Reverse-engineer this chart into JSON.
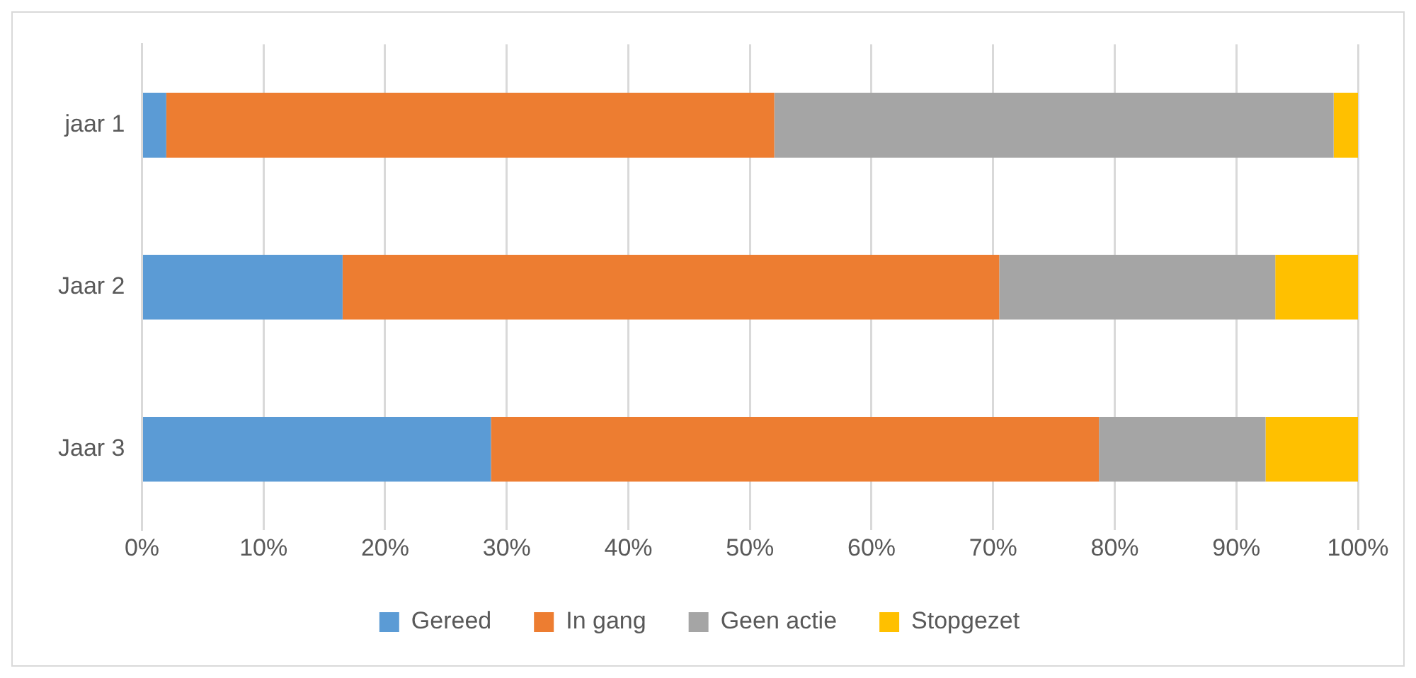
{
  "chart_data": {
    "type": "bar",
    "orientation": "horizontal",
    "stacked": true,
    "categories": [
      "jaar 1",
      "Jaar 2",
      "Jaar 3"
    ],
    "series": [
      {
        "name": "Gereed",
        "color": "#5b9bd5",
        "values": [
          2,
          16.5,
          28.7
        ]
      },
      {
        "name": "In gang",
        "color": "#ed7d31",
        "values": [
          50,
          54,
          50
        ]
      },
      {
        "name": "Geen actie",
        "color": "#a5a5a5",
        "values": [
          46,
          22.7,
          13.7
        ]
      },
      {
        "name": "Stopgezet",
        "color": "#ffc000",
        "values": [
          2,
          6.8,
          7.6
        ]
      }
    ],
    "xlim": [
      0,
      100
    ],
    "xticks": [
      {
        "value": 0,
        "label": "0%"
      },
      {
        "value": 10,
        "label": "10%"
      },
      {
        "value": 20,
        "label": "20%"
      },
      {
        "value": 30,
        "label": "30%"
      },
      {
        "value": 40,
        "label": "40%"
      },
      {
        "value": 50,
        "label": "50%"
      },
      {
        "value": 60,
        "label": "60%"
      },
      {
        "value": 70,
        "label": "70%"
      },
      {
        "value": 80,
        "label": "80%"
      },
      {
        "value": 90,
        "label": "90%"
      },
      {
        "value": 100,
        "label": "100%"
      }
    ],
    "grid": "x",
    "legend": "bottom"
  }
}
